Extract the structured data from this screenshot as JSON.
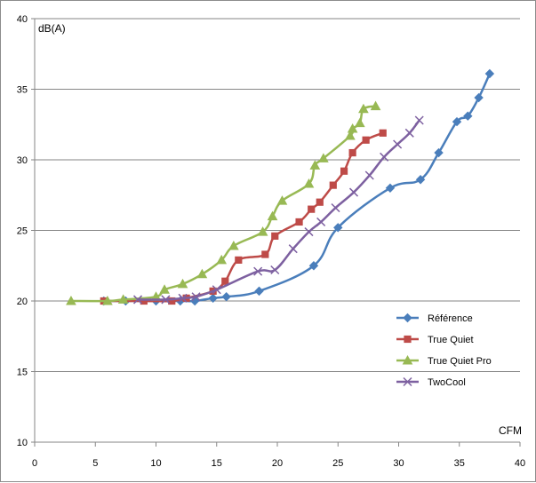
{
  "chart_data": {
    "type": "line",
    "title": "",
    "xlabel": "CFM",
    "ylabel": "dB(A)",
    "xlim": [
      0,
      40
    ],
    "ylim": [
      10,
      40
    ],
    "xticks": [
      "0",
      "5",
      "10",
      "15",
      "20",
      "25",
      "30",
      "35",
      "40"
    ],
    "yticks": [
      "10",
      "15",
      "20",
      "25",
      "30",
      "35",
      "40"
    ],
    "grid": "horizontal",
    "legend_position": "right",
    "series": [
      {
        "name": "Référence",
        "color": "#4a7ebb",
        "marker": "diamond",
        "points": [
          [
            5.7,
            20
          ],
          [
            7.5,
            20
          ],
          [
            10,
            20
          ],
          [
            12,
            20
          ],
          [
            13.2,
            20
          ],
          [
            14.7,
            20.2
          ],
          [
            15.8,
            20.3
          ],
          [
            18.5,
            20.7
          ],
          [
            23,
            22.5
          ],
          [
            25,
            25.2
          ],
          [
            29.3,
            28
          ],
          [
            31.8,
            28.6
          ],
          [
            33.3,
            30.5
          ],
          [
            34.8,
            32.7
          ],
          [
            35.7,
            33.1
          ],
          [
            36.6,
            34.4
          ],
          [
            37.5,
            36.1
          ]
        ]
      },
      {
        "name": "True Quiet",
        "color": "#be4b48",
        "marker": "square",
        "points": [
          [
            5.7,
            20
          ],
          [
            9,
            20
          ],
          [
            11.3,
            20
          ],
          [
            12.5,
            20.2
          ],
          [
            14.7,
            20.7
          ],
          [
            15.7,
            21.4
          ],
          [
            16.8,
            22.9
          ],
          [
            19,
            23.3
          ],
          [
            19.8,
            24.6
          ],
          [
            21.8,
            25.6
          ],
          [
            22.8,
            26.5
          ],
          [
            23.5,
            27
          ],
          [
            24.6,
            28.2
          ],
          [
            25.5,
            29.2
          ],
          [
            26.2,
            30.5
          ],
          [
            27.3,
            31.4
          ],
          [
            28.7,
            31.9
          ]
        ]
      },
      {
        "name": "True Quiet Pro",
        "color": "#98b954",
        "marker": "triangle",
        "points": [
          [
            3,
            20
          ],
          [
            6,
            20
          ],
          [
            7.3,
            20.1
          ],
          [
            10,
            20.3
          ],
          [
            10.7,
            20.8
          ],
          [
            12.2,
            21.2
          ],
          [
            13.8,
            21.9
          ],
          [
            15.4,
            22.9
          ],
          [
            16.4,
            23.9
          ],
          [
            18.8,
            24.9
          ],
          [
            19.6,
            26
          ],
          [
            20.4,
            27.1
          ],
          [
            22.6,
            28.3
          ],
          [
            23.1,
            29.6
          ],
          [
            23.8,
            30.1
          ],
          [
            26,
            31.7
          ],
          [
            26.2,
            32.2
          ],
          [
            26.8,
            32.6
          ],
          [
            27.1,
            33.6
          ],
          [
            28.1,
            33.8
          ]
        ]
      },
      {
        "name": "TwoCool",
        "color": "#7d60a0",
        "marker": "x",
        "points": [
          [
            8.5,
            20.1
          ],
          [
            10.8,
            20.1
          ],
          [
            12.2,
            20.2
          ],
          [
            13.3,
            20.3
          ],
          [
            15,
            20.8
          ],
          [
            18.4,
            22.1
          ],
          [
            19.8,
            22.2
          ],
          [
            21.3,
            23.7
          ],
          [
            22.6,
            24.9
          ],
          [
            23.6,
            25.6
          ],
          [
            24.8,
            26.6
          ],
          [
            26.3,
            27.7
          ],
          [
            27.6,
            28.9
          ],
          [
            28.8,
            30.2
          ],
          [
            29.9,
            31.1
          ],
          [
            30.9,
            31.9
          ],
          [
            31.7,
            32.8
          ]
        ]
      }
    ]
  }
}
